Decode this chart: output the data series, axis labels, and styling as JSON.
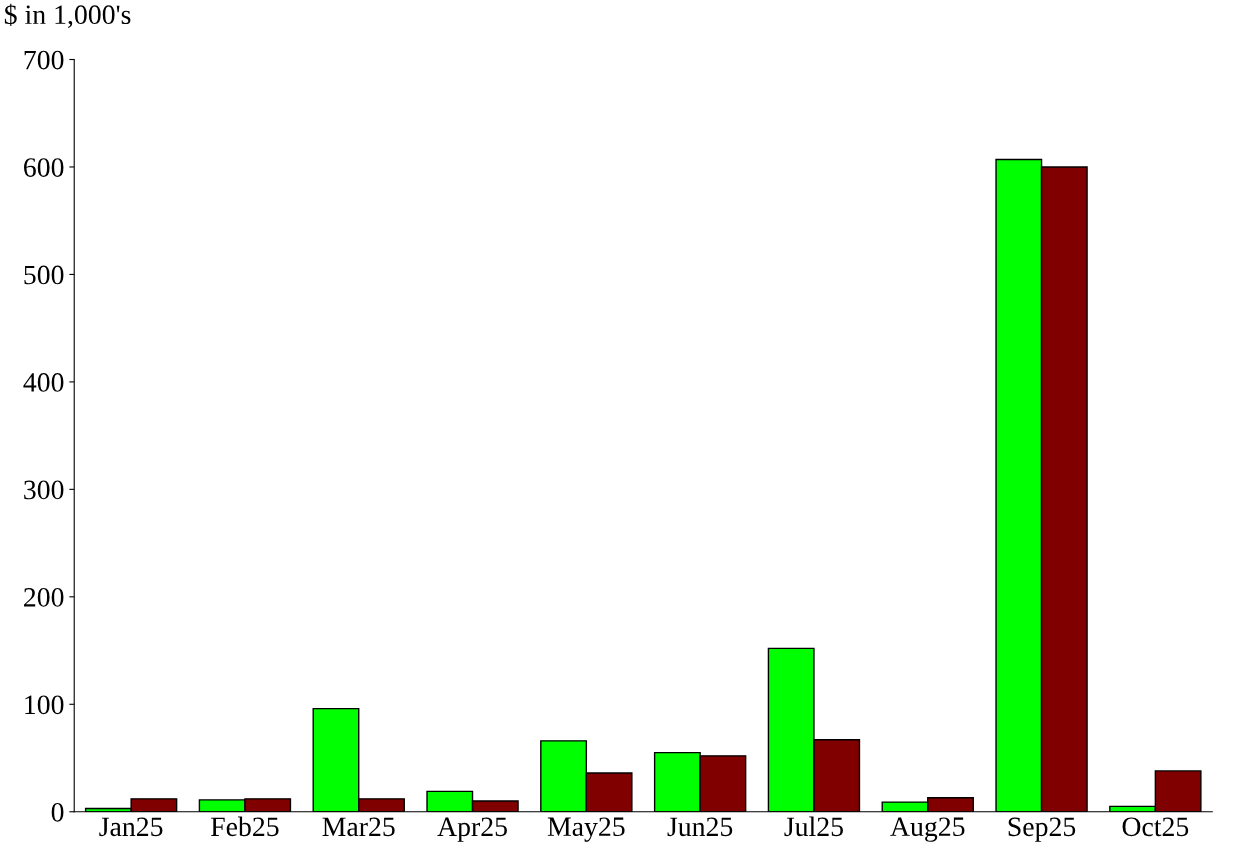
{
  "chart_data": {
    "type": "bar",
    "ylabel": "$ in 1,000's",
    "categories": [
      "Jan25",
      "Feb25",
      "Mar25",
      "Apr25",
      "May25",
      "Jun25",
      "Jul25",
      "Aug25",
      "Sep25",
      "Oct25"
    ],
    "series": [
      {
        "color": "#00ff00",
        "values": [
          3,
          11,
          96,
          19,
          66,
          55,
          152,
          9,
          607,
          5
        ]
      },
      {
        "color": "#800000",
        "values": [
          12,
          12,
          12,
          10,
          36,
          52,
          67,
          13,
          600,
          38
        ]
      }
    ],
    "ylim": [
      0,
      700
    ],
    "yticks": [
      0,
      100,
      200,
      300,
      400,
      500,
      600,
      700
    ],
    "grid": false,
    "legend": false
  }
}
